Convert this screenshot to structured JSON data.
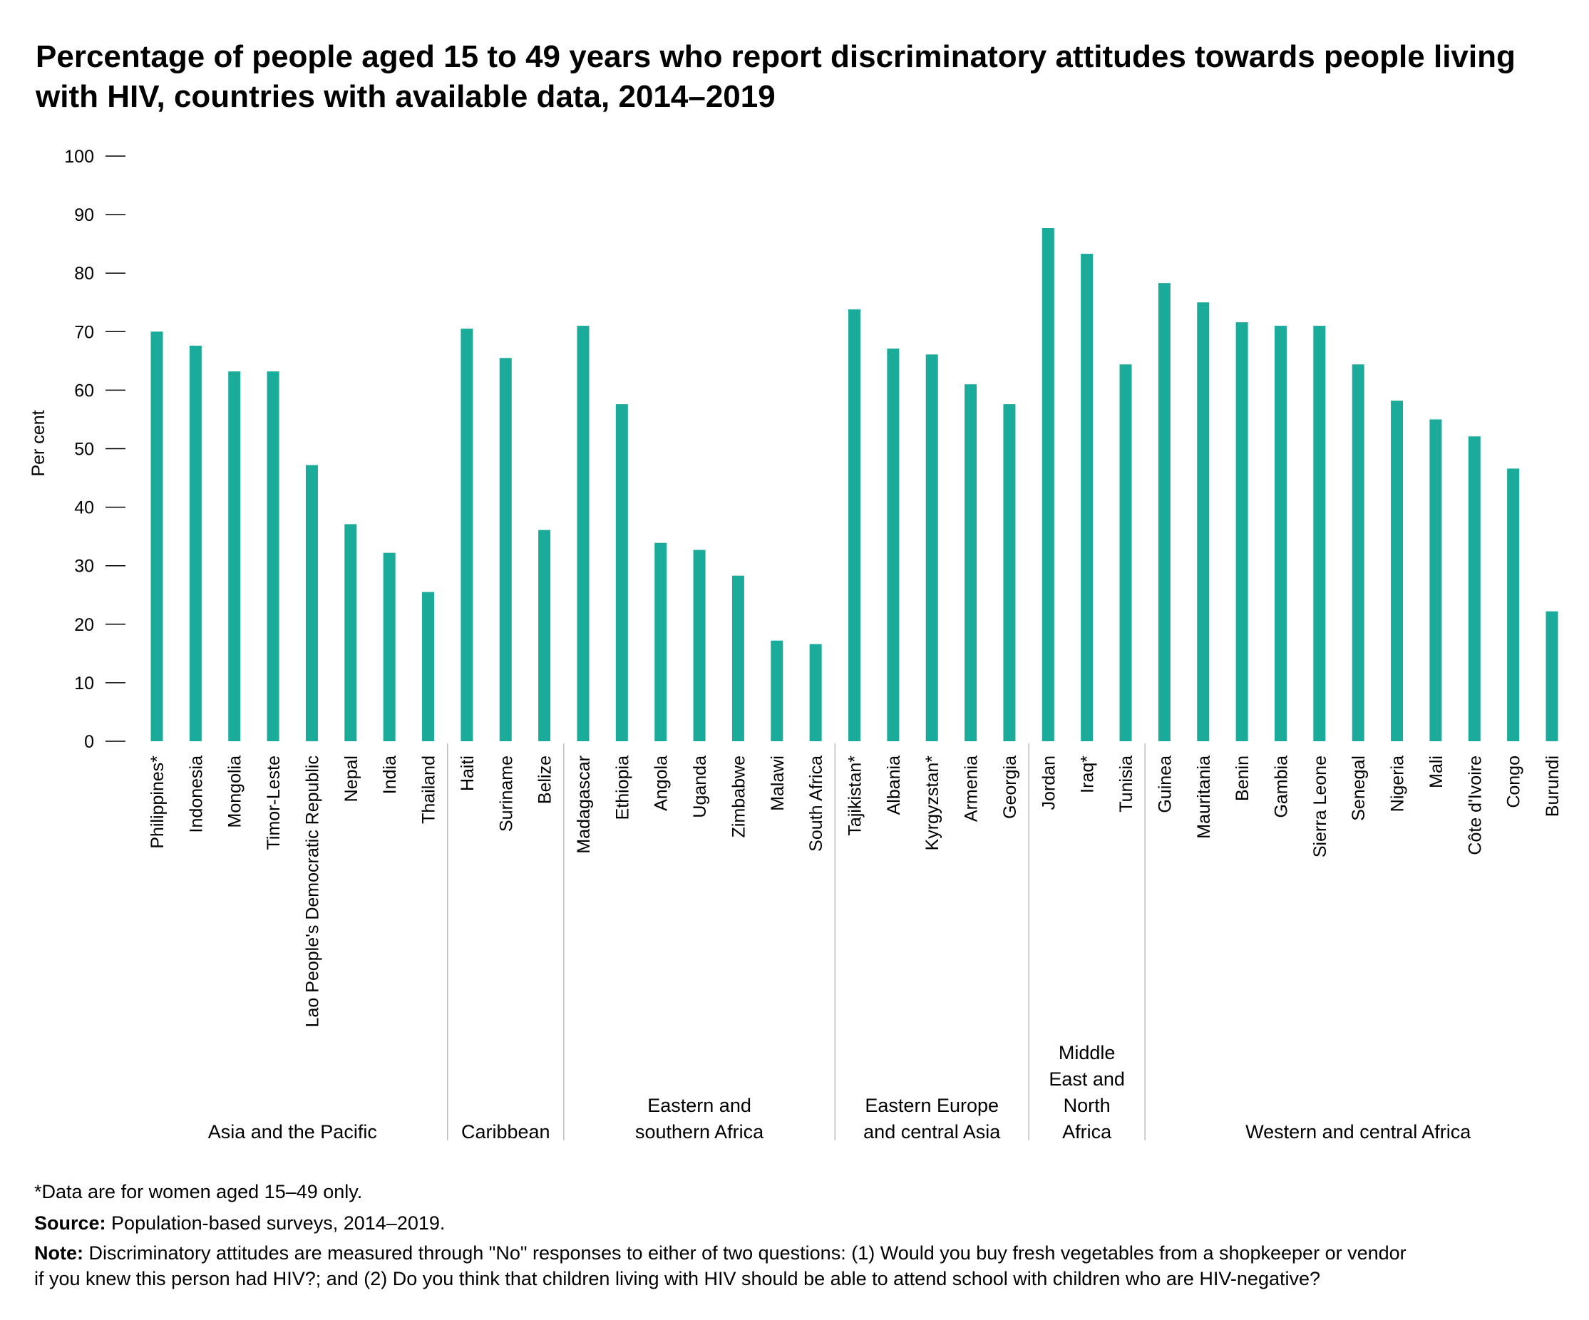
{
  "chart_data": {
    "type": "bar",
    "title": "Percentage of people aged 15 to 49 years who report discriminatory attitudes towards people living with HIV, countries with available data, 2014–2019",
    "ylabel": "Per cent",
    "xlabel": "",
    "ylim": [
      0,
      100
    ],
    "yticks": [
      "0",
      "10",
      "20",
      "30",
      "40",
      "50",
      "60",
      "70",
      "80",
      "90",
      "100"
    ],
    "grid": false,
    "bar_color": "#1aab9b",
    "categories": [
      "Philippines*",
      "Indonesia",
      "Mongolia",
      "Timor-Leste",
      "Lao People's Democratic Republic",
      "Nepal",
      "India",
      "Thailand",
      "Haiti",
      "Suriname",
      "Belize",
      "Madagascar",
      "Ethiopia",
      "Angola",
      "Uganda",
      "Zimbabwe",
      "Malawi",
      "South Africa",
      "Tajikistan*",
      "Albania",
      "Kyrgyzstan*",
      "Armenia",
      "Georgia",
      "Jordan",
      "Iraq*",
      "Tunisia",
      "Guinea",
      "Mauritania",
      "Benin",
      "Gambia",
      "Sierra Leone",
      "Senegal",
      "Nigeria",
      "Mali",
      "Côte d'Ivoire",
      "Congo",
      "Burundi"
    ],
    "values": [
      70,
      67.6,
      63.2,
      63.2,
      47.2,
      37.1,
      32.2,
      25.5,
      70.5,
      65.5,
      36.1,
      71,
      57.6,
      33.9,
      32.7,
      28.3,
      17.2,
      16.6,
      73.8,
      67.1,
      66.1,
      61,
      57.6,
      87.7,
      83.3,
      64.4,
      78.3,
      75,
      71.6,
      71,
      71,
      64.4,
      58.2,
      55,
      52.1,
      46.6,
      22.2
    ],
    "groups": [
      {
        "name": [
          "Asia and the Pacific"
        ],
        "count": 8
      },
      {
        "name": [
          "Caribbean"
        ],
        "count": 3
      },
      {
        "name": [
          "Eastern and",
          "southern Africa"
        ],
        "count": 7
      },
      {
        "name": [
          "Eastern Europe",
          "and central Asia"
        ],
        "count": 5
      },
      {
        "name": [
          "Middle",
          "East and",
          "North",
          "Africa"
        ],
        "count": 3
      },
      {
        "name": [
          "Western and central Africa"
        ],
        "count": 11
      }
    ]
  },
  "footnotes": {
    "asterisk_note": "*Data are for women aged 15–49 only.",
    "source_label": "Source:",
    "source_text": "Population-based surveys, 2014–2019.",
    "note_label": "Note:",
    "note_line1": "Discriminatory attitudes are measured through \"No\" responses to either of two questions: (1) Would you buy fresh vegetables from a shopkeeper or vendor",
    "note_line2": "if you knew this person had HIV?; and (2) Do you think that children living with HIV should be able to attend school with children who are HIV-negative?"
  }
}
